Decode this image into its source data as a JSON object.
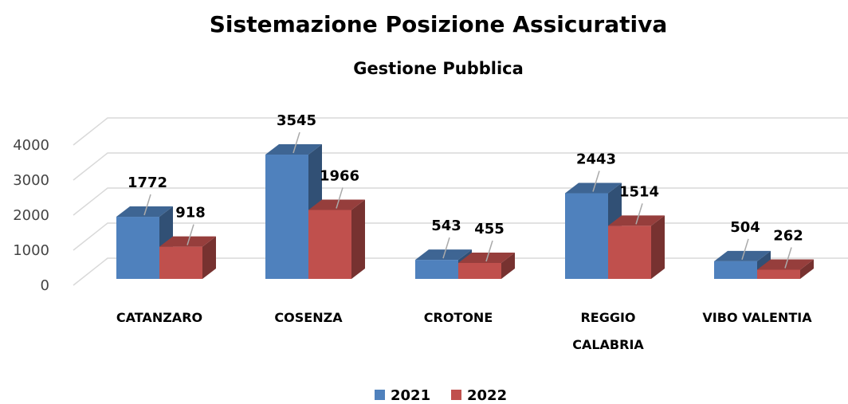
{
  "chart_data": {
    "type": "bar3d",
    "title": "Sistemazione Posizione Assicurativa",
    "subtitle": "Gestione Pubblica",
    "categories": [
      "CATANZARO",
      "COSENZA",
      "CROTONE",
      "REGGIO\nCALABRIA",
      "VIBO VALENTIA"
    ],
    "series": [
      {
        "name": "2021",
        "color": "#4f81bd",
        "values": [
          1772,
          3545,
          543,
          2443,
          504
        ]
      },
      {
        "name": "2022",
        "color": "#c0504d",
        "values": [
          918,
          1966,
          455,
          1514,
          262
        ]
      }
    ],
    "ylim": [
      0,
      4000
    ],
    "yticks": [
      0,
      1000,
      2000,
      3000,
      4000
    ],
    "grid": true,
    "legend": "bottom"
  }
}
